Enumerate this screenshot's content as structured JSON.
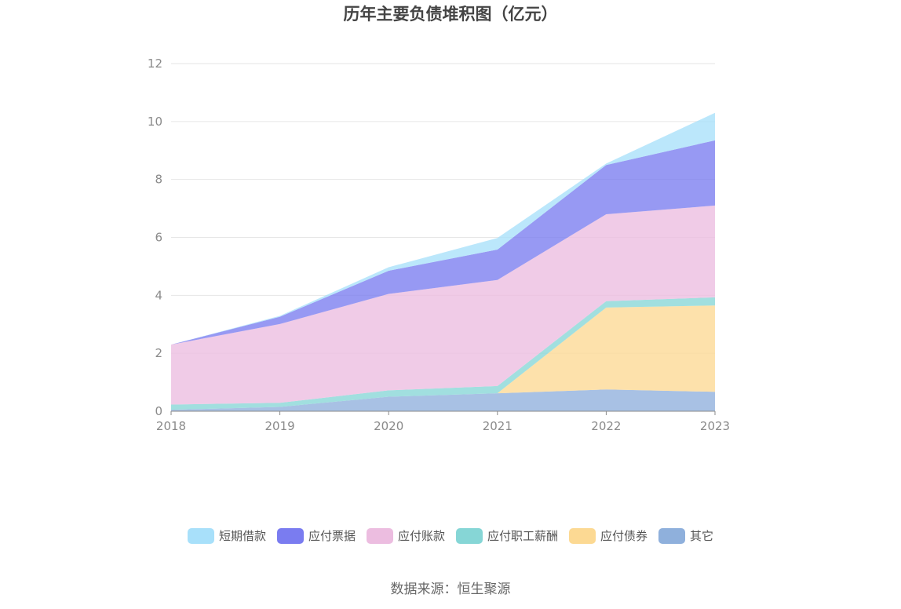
{
  "chart_data": {
    "type": "area",
    "stacked": true,
    "title": "历年主要负债堆积图（亿元）",
    "xlabel": "",
    "ylabel": "",
    "x": [
      "2018",
      "2019",
      "2020",
      "2021",
      "2022",
      "2023"
    ],
    "ylim": [
      0,
      12
    ],
    "yticks": [
      0,
      2,
      4,
      6,
      8,
      10,
      12
    ],
    "grid": true,
    "legend_position": "bottom",
    "series": [
      {
        "name": "其它",
        "color": "#8fb0dc",
        "values": [
          0.05,
          0.15,
          0.5,
          0.62,
          0.75,
          0.67
        ]
      },
      {
        "name": "应付债券",
        "color": "#fcd993",
        "values": [
          0,
          0,
          0,
          0,
          2.83,
          2.98
        ]
      },
      {
        "name": "应付职工薪酬",
        "color": "#86d6d6",
        "values": [
          0.18,
          0.14,
          0.22,
          0.25,
          0.22,
          0.28
        ]
      },
      {
        "name": "应付账款",
        "color": "#ecbde0",
        "values": [
          2.07,
          2.72,
          3.33,
          3.66,
          3.0,
          3.17
        ]
      },
      {
        "name": "应付票据",
        "color": "#7a7cf0",
        "values": [
          0,
          0.25,
          0.8,
          1.05,
          1.7,
          2.25
        ]
      },
      {
        "name": "短期借款",
        "color": "#a8e0fa",
        "values": [
          0,
          0.03,
          0.12,
          0.4,
          0.05,
          0.95
        ]
      }
    ]
  },
  "legend": [
    {
      "label": "短期借款",
      "color": "#a8e0fa"
    },
    {
      "label": "应付票据",
      "color": "#7a7cf0"
    },
    {
      "label": "应付账款",
      "color": "#ecbde0"
    },
    {
      "label": "应付职工薪酬",
      "color": "#86d6d6"
    },
    {
      "label": "应付债券",
      "color": "#fcd993"
    },
    {
      "label": "其它",
      "color": "#8fb0dc"
    }
  ],
  "footer": {
    "source": "数据来源：恒生聚源"
  }
}
